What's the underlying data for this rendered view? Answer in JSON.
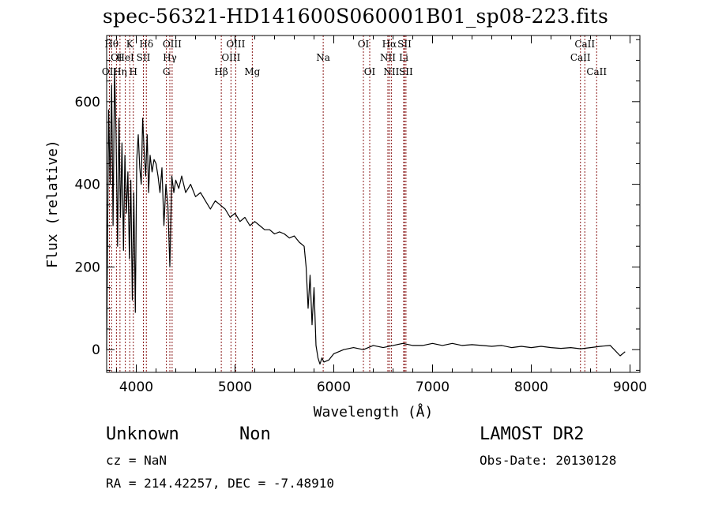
{
  "chart_data": {
    "type": "line",
    "title": "spec-56321-HD141600S060001B01_sp08-223.fits",
    "xlabel": "Wavelength (Å)",
    "ylabel": "Flux (relative)",
    "xlim": [
      3700,
      9100
    ],
    "ylim": [
      -55,
      760
    ],
    "xticks": [
      4000,
      5000,
      6000,
      7000,
      8000,
      9000
    ],
    "yticks": [
      0,
      200,
      400,
      600
    ],
    "grid": false,
    "line_color": "#000000",
    "marker_color": "#8b1a1a",
    "spectrum": {
      "x": [
        3700,
        3720,
        3735,
        3750,
        3765,
        3780,
        3795,
        3810,
        3825,
        3840,
        3855,
        3870,
        3885,
        3900,
        3915,
        3930,
        3945,
        3960,
        3975,
        3990,
        4005,
        4020,
        4035,
        4050,
        4065,
        4080,
        4095,
        4110,
        4125,
        4140,
        4160,
        4180,
        4200,
        4220,
        4240,
        4260,
        4280,
        4300,
        4320,
        4340,
        4360,
        4380,
        4400,
        4430,
        4460,
        4500,
        4550,
        4600,
        4650,
        4700,
        4750,
        4800,
        4850,
        4900,
        4950,
        5000,
        5050,
        5100,
        5150,
        5200,
        5250,
        5300,
        5350,
        5400,
        5450,
        5500,
        5550,
        5600,
        5650,
        5700,
        5720,
        5740,
        5760,
        5780,
        5800,
        5820,
        5840,
        5860,
        5880,
        5900,
        5950,
        6000,
        6100,
        6200,
        6300,
        6400,
        6500,
        6600,
        6700,
        6800,
        6900,
        7000,
        7100,
        7200,
        7300,
        7400,
        7500,
        7600,
        7700,
        7800,
        7900,
        8000,
        8100,
        8200,
        8300,
        8400,
        8500,
        8600,
        8700,
        8800,
        8900,
        8950
      ],
      "y": [
        0,
        580,
        400,
        640,
        300,
        680,
        520,
        250,
        560,
        320,
        500,
        240,
        470,
        330,
        430,
        220,
        410,
        120,
        380,
        90,
        460,
        520,
        440,
        400,
        560,
        480,
        420,
        520,
        380,
        470,
        430,
        460,
        450,
        420,
        380,
        440,
        300,
        400,
        350,
        200,
        420,
        380,
        410,
        390,
        420,
        380,
        400,
        370,
        380,
        360,
        340,
        360,
        350,
        340,
        320,
        330,
        310,
        320,
        300,
        310,
        300,
        290,
        290,
        280,
        285,
        280,
        270,
        275,
        260,
        250,
        200,
        100,
        180,
        60,
        150,
        10,
        -20,
        -35,
        -20,
        -30,
        -25,
        -10,
        0,
        5,
        0,
        10,
        5,
        10,
        15,
        10,
        10,
        15,
        10,
        15,
        10,
        12,
        10,
        8,
        10,
        5,
        8,
        5,
        8,
        5,
        3,
        5,
        2,
        5,
        8,
        10,
        -15,
        -5
      ]
    },
    "lines": [
      {
        "w": 3728,
        "name": "OII",
        "row": 3
      },
      {
        "w": 3750,
        "name": "Hθ",
        "row": 1
      },
      {
        "w": 3799,
        "name": "OI",
        "row": 2
      },
      {
        "w": 3835,
        "name": "Hη",
        "row": 3
      },
      {
        "w": 3889,
        "name": "HeI",
        "row": 2
      },
      {
        "w": 3934,
        "name": "K",
        "row": 1
      },
      {
        "w": 3970,
        "name": "H",
        "row": 3
      },
      {
        "w": 4072,
        "name": "SII",
        "row": 2
      },
      {
        "w": 4102,
        "name": "Hδ",
        "row": 1
      },
      {
        "w": 4305,
        "name": "G",
        "row": 3
      },
      {
        "w": 4340,
        "name": "Hγ",
        "row": 2
      },
      {
        "w": 4363,
        "name": "OIII",
        "row": 1
      },
      {
        "w": 4861,
        "name": "Hβ",
        "row": 3
      },
      {
        "w": 4959,
        "name": "OIII",
        "row": 2
      },
      {
        "w": 5007,
        "name": "OIII",
        "row": 1
      },
      {
        "w": 5175,
        "name": "Mg",
        "row": 3
      },
      {
        "w": 5893,
        "name": "Na",
        "row": 2
      },
      {
        "w": 6300,
        "name": "OI",
        "row": 1
      },
      {
        "w": 6364,
        "name": "OI",
        "row": 3
      },
      {
        "w": 6548,
        "name": "NII",
        "row": 2
      },
      {
        "w": 6563,
        "name": "Hα",
        "row": 1
      },
      {
        "w": 6583,
        "name": "NII",
        "row": 3
      },
      {
        "w": 6708,
        "name": "Li",
        "row": 2
      },
      {
        "w": 6716,
        "name": "SII",
        "row": 1
      },
      {
        "w": 6731,
        "name": "SII",
        "row": 3
      },
      {
        "w": 8498,
        "name": "CaII",
        "row": 2
      },
      {
        "w": 8542,
        "name": "CaII",
        "row": 1
      },
      {
        "w": 8662,
        "name": "CaII",
        "row": 3
      }
    ]
  },
  "info": {
    "class": "Unknown",
    "subclass": "Non",
    "cz": "cz = NaN",
    "coords": "RA = 214.42257, DEC =  -7.48910",
    "survey": "LAMOST DR2",
    "obs_date": "Obs-Date: 20130128"
  }
}
